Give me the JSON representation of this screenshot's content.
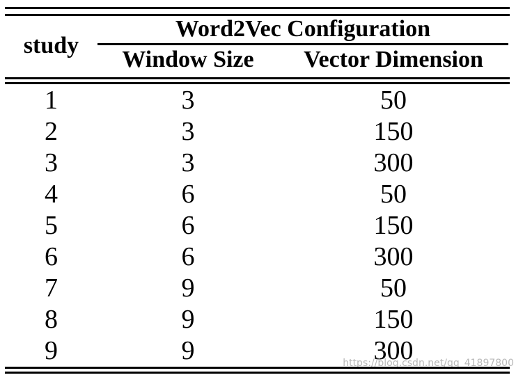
{
  "table": {
    "header": {
      "study_label": "study",
      "group_label": "Word2Vec Configuration",
      "subcolumns": [
        "Window Size",
        "Vector Dimension"
      ]
    },
    "columns_keys": [
      "study",
      "window_size",
      "vector_dimension"
    ],
    "rows": [
      {
        "study": "1",
        "window_size": "3",
        "vector_dimension": "50"
      },
      {
        "study": "2",
        "window_size": "3",
        "vector_dimension": "150"
      },
      {
        "study": "3",
        "window_size": "3",
        "vector_dimension": "300"
      },
      {
        "study": "4",
        "window_size": "6",
        "vector_dimension": "50"
      },
      {
        "study": "5",
        "window_size": "6",
        "vector_dimension": "150"
      },
      {
        "study": "6",
        "window_size": "6",
        "vector_dimension": "300"
      },
      {
        "study": "7",
        "window_size": "9",
        "vector_dimension": "50"
      },
      {
        "study": "8",
        "window_size": "9",
        "vector_dimension": "150"
      },
      {
        "study": "9",
        "window_size": "9",
        "vector_dimension": "300"
      }
    ]
  },
  "watermark": {
    "text": "https://blog.csdn.net/qq_41897800"
  },
  "colors": {
    "background": "#ffffff",
    "text": "#000000",
    "rule": "#000000",
    "watermark": "#b8b8b8"
  }
}
